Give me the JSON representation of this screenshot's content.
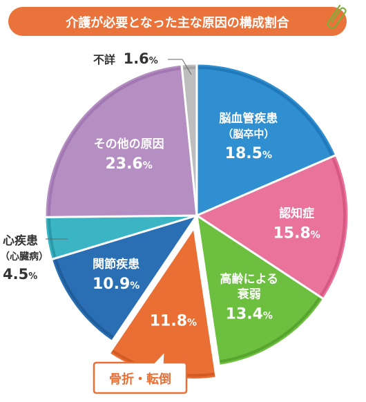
{
  "chart_data": {
    "type": "pie",
    "title": "介護が必要となった主な原因の構成割合",
    "unit": "%",
    "slices": [
      {
        "label_lines": [
          "脳血管疾患",
          "（脳卒中）"
        ],
        "value": 18.5,
        "value_text": "18.5",
        "color": "#2f8fd1",
        "edge": "#1a6fb0",
        "text_color": "#ffffff"
      },
      {
        "label_lines": [
          "認知症"
        ],
        "value": 15.8,
        "value_text": "15.8",
        "color": "#e9739a",
        "edge": "#cf4e79",
        "text_color": "#ffffff"
      },
      {
        "label_lines": [
          "高齢による",
          "衰弱"
        ],
        "value": 13.4,
        "value_text": "13.4",
        "color": "#6cbf3f",
        "edge": "#4e9a2a",
        "text_color": "#ffffff"
      },
      {
        "label_lines": [],
        "value": 11.8,
        "value_text": "11.8",
        "color": "#e96f35",
        "edge": "#c8521d",
        "text_color": "#ffffff",
        "exploded": true
      },
      {
        "label_lines": [
          "関節疾患"
        ],
        "value": 10.9,
        "value_text": "10.9",
        "color": "#2a6fb3",
        "edge": "#1c5592",
        "text_color": "#ffffff"
      },
      {
        "label_lines": [],
        "value": 4.5,
        "value_text": "4.5",
        "color": "#3bb4c4",
        "edge": "#238f9e",
        "text_color": "#333333"
      },
      {
        "label_lines": [
          "その他の原因"
        ],
        "value": 23.6,
        "value_text": "23.6",
        "color": "#b58ec2",
        "edge": "#9a6fab",
        "text_color": "#ffffff"
      },
      {
        "label_lines": [],
        "value": 1.6,
        "value_text": "1.6",
        "color": "#bdbdbd",
        "edge": "#9a9a9a",
        "text_color": "#333333"
      }
    ],
    "outside_labels": {
      "heart": {
        "lines": [
          "心疾患",
          "（心臓病）"
        ],
        "value_text": "4.5"
      },
      "unknown": {
        "label": "不詳",
        "value_text": "1.6"
      }
    },
    "callout": {
      "text": "骨折・転倒",
      "border_color": "#e96f35"
    }
  },
  "title_color": "#e9733b",
  "clip_icon": "paperclip-icon"
}
